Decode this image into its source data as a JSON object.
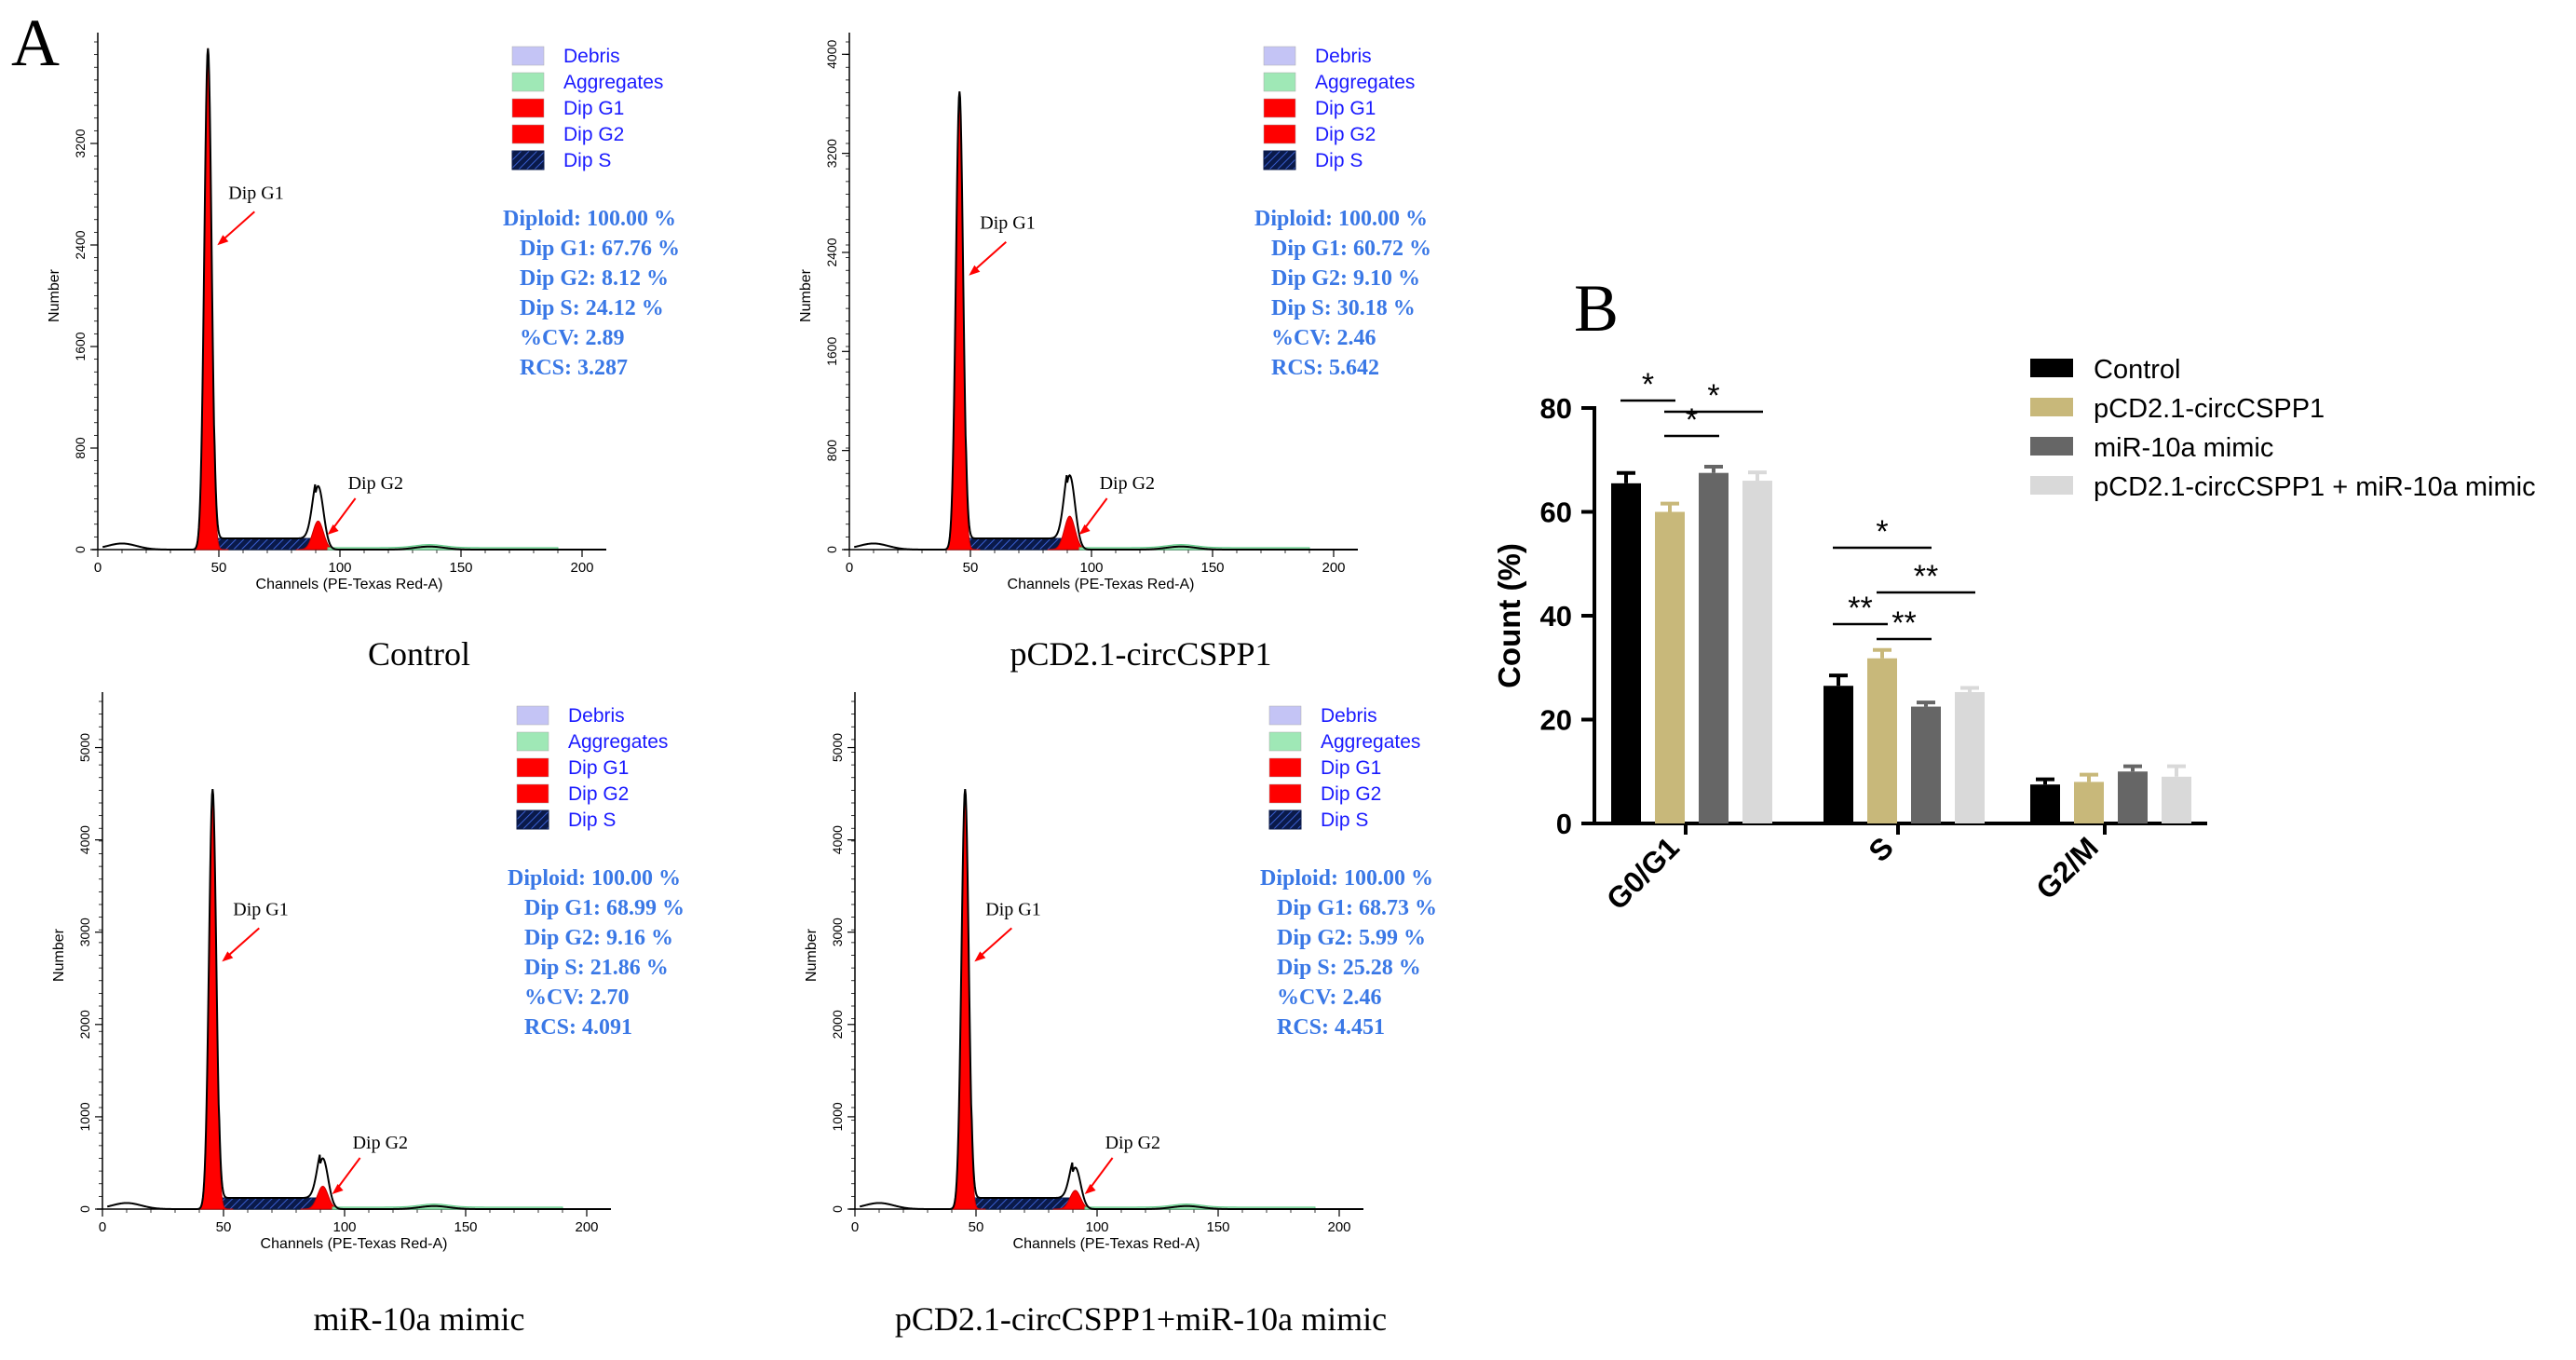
{
  "panel_a": {
    "label": "A",
    "legend": [
      {
        "name": "Debris",
        "color": "#c4c4f5"
      },
      {
        "name": "Aggregates",
        "color": "#9fe8b6"
      },
      {
        "name": "Dip G1",
        "color": "#ff0000"
      },
      {
        "name": "Dip G2",
        "color": "#ff0000"
      },
      {
        "name": "Dip S",
        "color": "#0a1a4a"
      }
    ],
    "histograms": [
      {
        "caption": "Control",
        "ylabel": "Number",
        "xlabel": "Channels (PE-Texas Red-A)",
        "xticks": [
          "0",
          "50",
          "100",
          "150",
          "200"
        ],
        "yticks": [
          "0",
          "800",
          "1600",
          "2400",
          "3200"
        ],
        "ymax": 4000,
        "g1_peak": 3950,
        "g2_peak": 500,
        "peak_label_g1": "Dip G1",
        "peak_label_g2": "Dip G2",
        "stats": [
          "Diploid: 100.00 %",
          "Dip G1: 67.76 %",
          "Dip G2: 8.12 %",
          "Dip S: 24.12 %",
          "%CV: 2.89",
          "RCS: 3.287"
        ]
      },
      {
        "caption": "pCD2.1-circCSPP1",
        "ylabel": "Number",
        "xlabel": "Channels (PE-Texas Red-A)",
        "xticks": [
          "0",
          "50",
          "100",
          "150",
          "200"
        ],
        "yticks": [
          "0",
          "800",
          "1600",
          "2400",
          "3200",
          "4000"
        ],
        "ymax": 4100,
        "g1_peak": 3700,
        "g2_peak": 600,
        "peak_label_g1": "Dip G1",
        "peak_label_g2": "Dip G2",
        "stats": [
          "Diploid: 100.00 %",
          "Dip G1: 60.72 %",
          "Dip G2: 9.10 %",
          "Dip S: 30.18 %",
          "%CV: 2.46",
          "RCS: 5.642"
        ]
      },
      {
        "caption": "miR-10a mimic",
        "ylabel": "Number",
        "xlabel": "Channels (PE-Texas Red-A)",
        "xticks": [
          "0",
          "50",
          "100",
          "150",
          "200"
        ],
        "yticks": [
          "0",
          "1000",
          "2000",
          "3000",
          "4000",
          "5000"
        ],
        "ymax": 5500,
        "g1_peak": 4550,
        "g2_peak": 550,
        "peak_label_g1": "Dip G1",
        "peak_label_g2": "Dip G2",
        "stats": [
          "Diploid: 100.00 %",
          "Dip G1: 68.99 %",
          "Dip G2: 9.16 %",
          "Dip S: 21.86 %",
          "%CV: 2.70",
          "RCS: 4.091"
        ]
      },
      {
        "caption": "pCD2.1-circCSPP1+miR-10a mimic",
        "ylabel": "Number",
        "xlabel": "Channels (PE-Texas Red-A)",
        "xticks": [
          "0",
          "50",
          "100",
          "150",
          "200"
        ],
        "yticks": [
          "0",
          "1000",
          "2000",
          "3000",
          "4000",
          "5000"
        ],
        "ymax": 5500,
        "g1_peak": 4550,
        "g2_peak": 450,
        "peak_label_g1": "Dip G1",
        "peak_label_g2": "Dip G2",
        "stats": [
          "Diploid: 100.00 %",
          "Dip G1: 68.73 %",
          "Dip G2: 5.99 %",
          "Dip S: 25.28 %",
          "%CV: 2.46",
          "RCS: 4.451"
        ]
      }
    ]
  },
  "chart_data": {
    "label": "B",
    "type": "bar",
    "title": "",
    "xlabel": "",
    "ylabel": "Count (%)",
    "ylim": [
      0,
      80
    ],
    "yticks": [
      "0",
      "20",
      "40",
      "60",
      "80"
    ],
    "categories": [
      "G0/G1",
      "S",
      "G2/M"
    ],
    "series": [
      {
        "name": "Control",
        "color": "#000000",
        "values": [
          65.5,
          26.5,
          7.5
        ],
        "errors": [
          2.0,
          2.0,
          1.0
        ]
      },
      {
        "name": "pCD2.1-circCSPP1",
        "color": "#c8b87a",
        "values": [
          60.0,
          31.8,
          8.0
        ],
        "errors": [
          1.6,
          1.6,
          1.4
        ]
      },
      {
        "name": "miR-10a mimic",
        "color": "#666666",
        "values": [
          67.5,
          22.5,
          10.0
        ],
        "errors": [
          1.2,
          0.8,
          1.0
        ]
      },
      {
        "name": "pCD2.1-circCSPP1 + miR-10a mimic",
        "color": "#d9d9d9",
        "values": [
          66.0,
          25.3,
          9.0
        ],
        "errors": [
          1.6,
          0.8,
          2.0
        ]
      }
    ],
    "significance": [
      {
        "category": 0,
        "from": 0,
        "to": 1,
        "label": "*"
      },
      {
        "category": 0,
        "from": 1,
        "to": 2,
        "label": "*"
      },
      {
        "category": 0,
        "from": 1,
        "to": 3,
        "label": "*"
      },
      {
        "category": 1,
        "from": 0,
        "to": 2,
        "label": "*"
      },
      {
        "category": 1,
        "from": 1,
        "to": 3,
        "label": "**"
      },
      {
        "category": 1,
        "from": 0,
        "to": 1,
        "label": "**"
      },
      {
        "category": 1,
        "from": 1,
        "to": 2,
        "label": "**"
      }
    ]
  }
}
